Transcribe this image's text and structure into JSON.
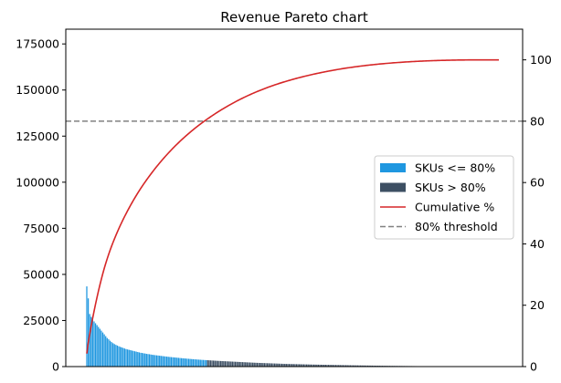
{
  "chart_data": {
    "type": "bar",
    "title": "Revenue Pareto chart",
    "xlabel": "",
    "ylabel": "",
    "ylim": [
      0,
      183000
    ],
    "y2lim": [
      0,
      110
    ],
    "yticks": [
      "0",
      "25000",
      "50000",
      "75000",
      "100000",
      "125000",
      "150000",
      "175000"
    ],
    "y2ticks": [
      "0",
      "20",
      "40",
      "60",
      "80",
      "100"
    ],
    "grid": false,
    "legend_position": "center-right",
    "threshold_percent": 80,
    "colors": {
      "above_split": "#1f97e0",
      "below_split": "#3d4f63",
      "cumulative": "#d62728",
      "threshold": "#808080"
    },
    "legend": [
      {
        "label": "SKUs <= 80%",
        "kind": "patch",
        "color": "#1f97e0"
      },
      {
        "label": "SKUs > 80%",
        "kind": "patch",
        "color": "#3d4f63"
      },
      {
        "label": "Cumulative %",
        "kind": "line",
        "color": "#d62728"
      },
      {
        "label": "80% threshold",
        "kind": "dash",
        "color": "#808080"
      }
    ],
    "series": [
      {
        "name": "SKUs <= 80%",
        "values": [
          43500,
          37000,
          28500,
          27000,
          25500,
          24500,
          23500,
          22500,
          21500,
          20500,
          19500,
          18500,
          17500,
          16500,
          15500,
          14800,
          14000,
          13300,
          12700,
          12200,
          11800,
          11400,
          11000,
          10700,
          10400,
          10100,
          9800,
          9500,
          9300,
          9100,
          8900,
          8700,
          8500,
          8300,
          8100,
          7900,
          7700,
          7500,
          7400,
          7200,
          7100,
          6900,
          6800,
          6700,
          6550,
          6400,
          6300,
          6200,
          6100,
          6000,
          5900,
          5800,
          5700,
          5600,
          5500,
          5400,
          5300,
          5220,
          5140,
          5060,
          4980,
          4900,
          4820,
          4740,
          4660,
          4580,
          4500,
          4430,
          4360,
          4290,
          4220,
          4150,
          4080,
          4010,
          3950,
          3890,
          3830,
          3770,
          3710,
          3650,
          3600,
          3550,
          3500
        ]
      },
      {
        "name": "SKUs > 80%",
        "values": [
          3450,
          3400,
          3350,
          3300,
          3250,
          3200,
          3150,
          3100,
          3060,
          3020,
          2980,
          2940,
          2900,
          2860,
          2820,
          2780,
          2740,
          2700,
          2660,
          2620,
          2580,
          2540,
          2500,
          2460,
          2420,
          2380,
          2340,
          2300,
          2260,
          2220,
          2180,
          2140,
          2100,
          2070,
          2040,
          2010,
          1980,
          1950,
          1920,
          1890,
          1860,
          1830,
          1800,
          1770,
          1740,
          1710,
          1680,
          1650,
          1620,
          1590,
          1560,
          1530,
          1500,
          1480,
          1460,
          1440,
          1420,
          1400,
          1380,
          1360,
          1340,
          1320,
          1300,
          1280,
          1260,
          1240,
          1220,
          1200,
          1180,
          1160,
          1140,
          1120,
          1100,
          1085,
          1070,
          1055,
          1040,
          1025,
          1010,
          995,
          980,
          965,
          950,
          935,
          920,
          905,
          890,
          875,
          860,
          845,
          830,
          815,
          800,
          785,
          770,
          755,
          740,
          725,
          710,
          695,
          680,
          668,
          656,
          644,
          632,
          620,
          608,
          596,
          584,
          572,
          560,
          548,
          536,
          524,
          512,
          500,
          490,
          480,
          470,
          460,
          450,
          440,
          430,
          420,
          410,
          400,
          392,
          384,
          376,
          368,
          360,
          352,
          344,
          336,
          328,
          320,
          312,
          304,
          296,
          288,
          280,
          272,
          264,
          256,
          248,
          240,
          233,
          226,
          219,
          212,
          205,
          198,
          191,
          184,
          177,
          170,
          164,
          158,
          152,
          146,
          140,
          134,
          128,
          122,
          116,
          110,
          105,
          100,
          95,
          90,
          85,
          80,
          75,
          70,
          65,
          60,
          56,
          52,
          48,
          44,
          40,
          36,
          32,
          28,
          24,
          20,
          18,
          16,
          14,
          12,
          10,
          8,
          6,
          5,
          4,
          3,
          2,
          2,
          1,
          1,
          1
        ]
      }
    ]
  }
}
